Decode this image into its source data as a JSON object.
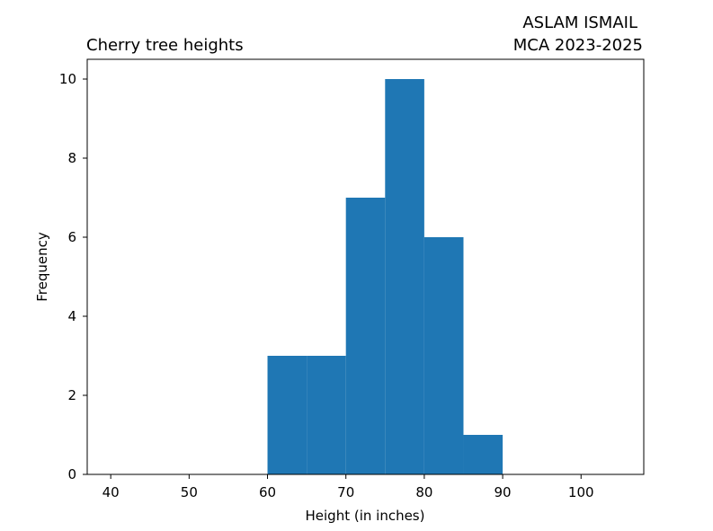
{
  "chart_data": {
    "type": "bar",
    "title_left": "Cherry tree heights",
    "title_right_lines": [
      "ASLAM ISMAIL",
      "MCA 2023-2025"
    ],
    "xlabel": "Height (in inches)",
    "ylabel": "Frequency",
    "xlim": [
      37,
      108
    ],
    "ylim": [
      0,
      10.5
    ],
    "x_ticks": [
      40,
      50,
      60,
      70,
      80,
      90,
      100
    ],
    "y_ticks": [
      0,
      2,
      4,
      6,
      8,
      10
    ],
    "bins": [
      {
        "x0": 60,
        "x1": 65,
        "value": 3
      },
      {
        "x0": 65,
        "x1": 70,
        "value": 3
      },
      {
        "x0": 70,
        "x1": 75,
        "value": 7
      },
      {
        "x0": 75,
        "x1": 80,
        "value": 10
      },
      {
        "x0": 80,
        "x1": 85,
        "value": 6
      },
      {
        "x0": 85,
        "x1": 90,
        "value": 1
      }
    ],
    "bar_color": "#1f77b4",
    "grid": false,
    "legend": "none"
  }
}
